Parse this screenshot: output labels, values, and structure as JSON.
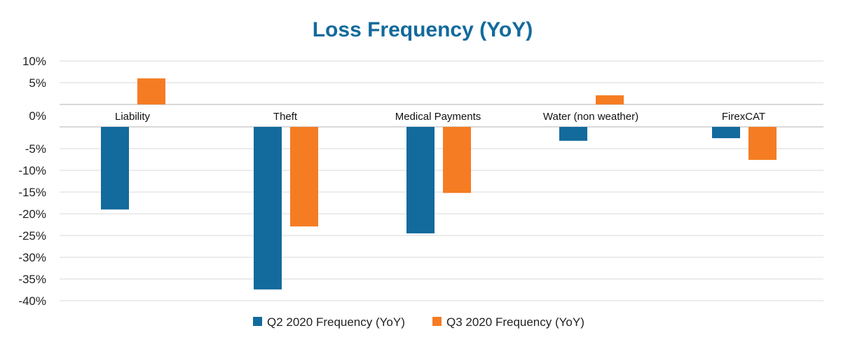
{
  "chart_data": {
    "type": "bar",
    "title": "Loss Frequency (YoY)",
    "xlabel": "",
    "ylabel": "",
    "categories": [
      "Liability",
      "Theft",
      "Medical Payments",
      "Water (non weather)",
      "FirexCAT"
    ],
    "series": [
      {
        "name": "Q2 2020 Frequency (YoY)",
        "color": "#136a9c",
        "values": [
          -19.0,
          -37.4,
          -24.5,
          -3.2,
          -2.6
        ]
      },
      {
        "name": "Q3 2020 Frequency (YoY)",
        "color": "#f57c22",
        "values": [
          6.0,
          -22.9,
          -15.2,
          2.1,
          -7.6
        ]
      }
    ],
    "ylim": [
      -40,
      10
    ],
    "yticks": [
      "10%",
      "5%",
      "0%",
      "-5%",
      "-10%",
      "-15%",
      "-20%",
      "-25%",
      "-30%",
      "-35%",
      "-40%"
    ],
    "grid": true,
    "legend": "bottom",
    "title_color": "#136a9c"
  }
}
